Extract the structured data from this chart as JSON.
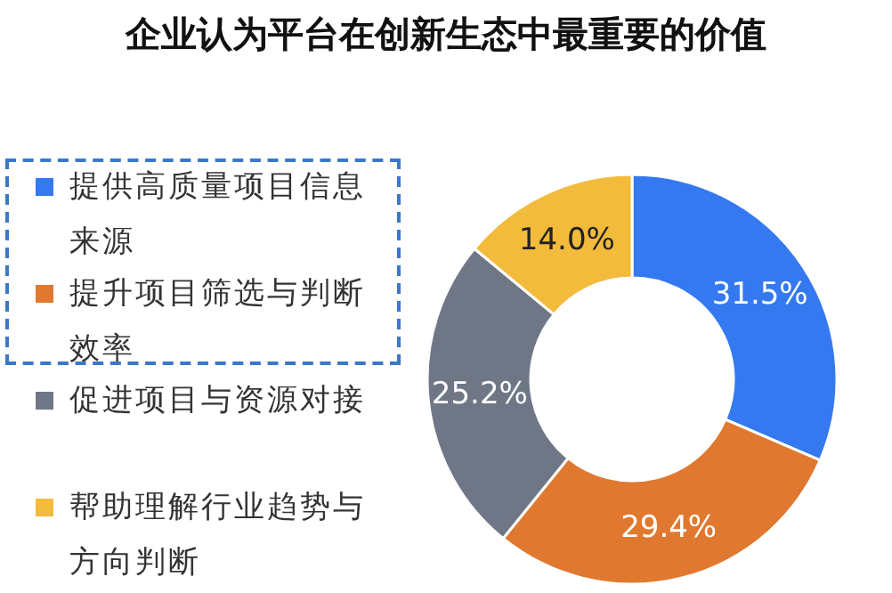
{
  "chart_data": {
    "type": "donut",
    "title": "企业认为平台在创新生态中最重要的价值",
    "categories": [
      "提供高质量项目信息来源",
      "提升项目筛选与判断效率",
      "促进项目与资源对接",
      "帮助理解行业趋势与方向判断"
    ],
    "values": [
      31.5,
      29.4,
      25.2,
      14.0
    ],
    "colors": [
      "#3479f0",
      "#e0792f",
      "#6f7787",
      "#f3bb3c"
    ],
    "value_labels": [
      "31.5%",
      "29.4%",
      "25.2%",
      "14.0%"
    ],
    "legend": "left"
  }
}
